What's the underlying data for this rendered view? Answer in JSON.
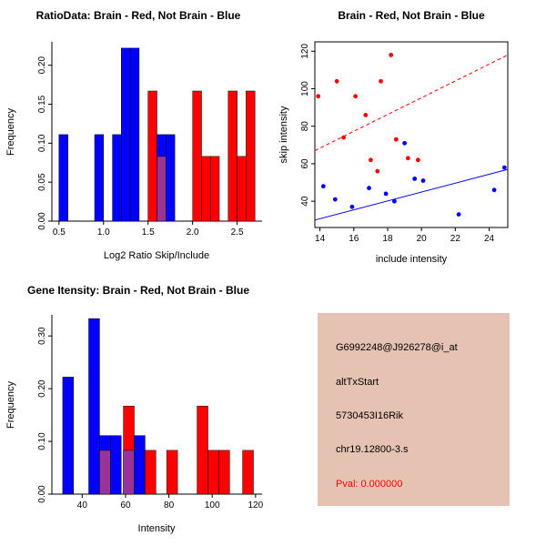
{
  "palette": {
    "red": "#FF0000",
    "blue": "#0000FF",
    "purple": "#993399",
    "axis": "#000000",
    "info_bg": "#E6C2B2"
  },
  "chart_data": [
    {
      "id": "ratio_histogram",
      "type": "bar",
      "title": "RatioData: Brain - Red, Not Brain - Blue",
      "xlabel": "Log2 Ratio Skip/Include",
      "ylabel": "Frequency",
      "xlim": [
        0.42,
        2.78
      ],
      "ylim": [
        0,
        0.23
      ],
      "xticks": [
        0.5,
        1.0,
        1.5,
        2.0,
        2.5
      ],
      "xtick_labels": [
        "0.5",
        "1.0",
        "1.5",
        "2.0",
        "2.5"
      ],
      "yticks": [
        0.0,
        0.05,
        0.1,
        0.15,
        0.2
      ],
      "ytick_labels": [
        "0.00",
        "0.05",
        "0.10",
        "0.15",
        "0.20"
      ],
      "bin_width": 0.1,
      "color_legend": {
        "red": "Brain",
        "blue": "Not Brain",
        "purple": "overlap"
      },
      "bars": [
        {
          "x": 0.5,
          "height": 0.111,
          "color": "blue"
        },
        {
          "x": 0.9,
          "height": 0.111,
          "color": "blue"
        },
        {
          "x": 1.1,
          "height": 0.111,
          "color": "blue"
        },
        {
          "x": 1.2,
          "height": 0.222,
          "color": "blue"
        },
        {
          "x": 1.3,
          "height": 0.222,
          "color": "blue"
        },
        {
          "x": 1.5,
          "height": 0.167,
          "color": "red"
        },
        {
          "x": 1.6,
          "height": 0.111,
          "color": "blue"
        },
        {
          "x": 1.6,
          "height": 0.083,
          "color": "purple"
        },
        {
          "x": 1.7,
          "height": 0.111,
          "color": "blue"
        },
        {
          "x": 2.0,
          "height": 0.167,
          "color": "red"
        },
        {
          "x": 2.1,
          "height": 0.083,
          "color": "red"
        },
        {
          "x": 2.2,
          "height": 0.083,
          "color": "red"
        },
        {
          "x": 2.4,
          "height": 0.167,
          "color": "red"
        },
        {
          "x": 2.5,
          "height": 0.083,
          "color": "red"
        },
        {
          "x": 2.6,
          "height": 0.167,
          "color": "red"
        }
      ]
    },
    {
      "id": "intensity_scatter",
      "type": "scatter",
      "title": "Brain - Red, Not Brain - Blue",
      "xlabel": "include intensity",
      "ylabel": "skip intensity",
      "xlim": [
        13.7,
        25.1
      ],
      "ylim": [
        26,
        125
      ],
      "xticks": [
        14,
        16,
        18,
        20,
        22,
        24
      ],
      "xtick_labels": [
        "14",
        "16",
        "18",
        "20",
        "22",
        "24"
      ],
      "yticks": [
        40,
        60,
        80,
        100,
        120
      ],
      "ytick_labels": [
        "40",
        "60",
        "80",
        "100",
        "120"
      ],
      "series": [
        {
          "name": "Brain",
          "color": "red",
          "points": [
            [
              13.9,
              96
            ],
            [
              15.0,
              104
            ],
            [
              16.1,
              96
            ],
            [
              17.6,
              104
            ],
            [
              18.2,
              118
            ],
            [
              15.4,
              74
            ],
            [
              16.7,
              86
            ],
            [
              17.0,
              62
            ],
            [
              17.4,
              56
            ],
            [
              18.5,
              73
            ],
            [
              19.2,
              63
            ],
            [
              19.8,
              62
            ]
          ]
        },
        {
          "name": "Not Brain",
          "color": "blue",
          "points": [
            [
              14.2,
              48
            ],
            [
              14.9,
              41
            ],
            [
              15.9,
              37
            ],
            [
              16.9,
              47
            ],
            [
              17.9,
              44
            ],
            [
              18.4,
              40
            ],
            [
              19.0,
              71
            ],
            [
              19.6,
              52
            ],
            [
              20.1,
              51
            ],
            [
              22.2,
              33
            ],
            [
              24.3,
              46
            ],
            [
              24.9,
              58
            ]
          ]
        }
      ],
      "fit_lines": [
        {
          "name": "brain-fit",
          "color": "red",
          "style": "dashed",
          "from": [
            13.7,
            67
          ],
          "to": [
            25.1,
            118
          ]
        },
        {
          "name": "not-brain-fit",
          "color": "blue",
          "style": "solid",
          "from": [
            13.7,
            30
          ],
          "to": [
            25.1,
            57
          ]
        }
      ]
    },
    {
      "id": "gene_intensity_histogram",
      "type": "bar",
      "title": "Gene Itensity: Brain - Red, Not Brain - Blue",
      "xlabel": "Intensity",
      "ylabel": "Frequency",
      "xlim": [
        26,
        123
      ],
      "ylim": [
        0,
        0.34
      ],
      "xticks": [
        40,
        60,
        80,
        100,
        120
      ],
      "xtick_labels": [
        "40",
        "60",
        "80",
        "100",
        "120"
      ],
      "yticks": [
        0.0,
        0.1,
        0.2,
        0.3
      ],
      "ytick_labels": [
        "0.00",
        "0.10",
        "0.20",
        "0.30"
      ],
      "bin_width": 5,
      "color_legend": {
        "red": "Brain",
        "blue": "Not Brain",
        "purple": "overlap"
      },
      "bars": [
        {
          "x": 31,
          "height": 0.222,
          "color": "blue"
        },
        {
          "x": 43,
          "height": 0.333,
          "color": "blue"
        },
        {
          "x": 48,
          "height": 0.111,
          "color": "blue"
        },
        {
          "x": 48,
          "height": 0.083,
          "color": "purple"
        },
        {
          "x": 53,
          "height": 0.111,
          "color": "blue"
        },
        {
          "x": 59,
          "height": 0.167,
          "color": "red"
        },
        {
          "x": 59,
          "height": 0.083,
          "color": "purple"
        },
        {
          "x": 64,
          "height": 0.111,
          "color": "blue"
        },
        {
          "x": 69,
          "height": 0.083,
          "color": "red"
        },
        {
          "x": 79,
          "height": 0.083,
          "color": "red"
        },
        {
          "x": 93,
          "height": 0.167,
          "color": "red"
        },
        {
          "x": 98,
          "height": 0.083,
          "color": "red"
        },
        {
          "x": 103,
          "height": 0.083,
          "color": "red"
        },
        {
          "x": 114,
          "height": 0.083,
          "color": "red"
        }
      ]
    }
  ],
  "info_panel": {
    "lines": [
      {
        "text": "G6992248@J926278@i_at",
        "color": "#000000"
      },
      {
        "text": "altTxStart",
        "color": "#000000"
      },
      {
        "text": "5730453I16Rik",
        "color": "#000000"
      },
      {
        "text": "chr19.12800-3.s",
        "color": "#000000"
      },
      {
        "text": "Pval: 0.000000",
        "color": "#FF0000"
      }
    ]
  }
}
